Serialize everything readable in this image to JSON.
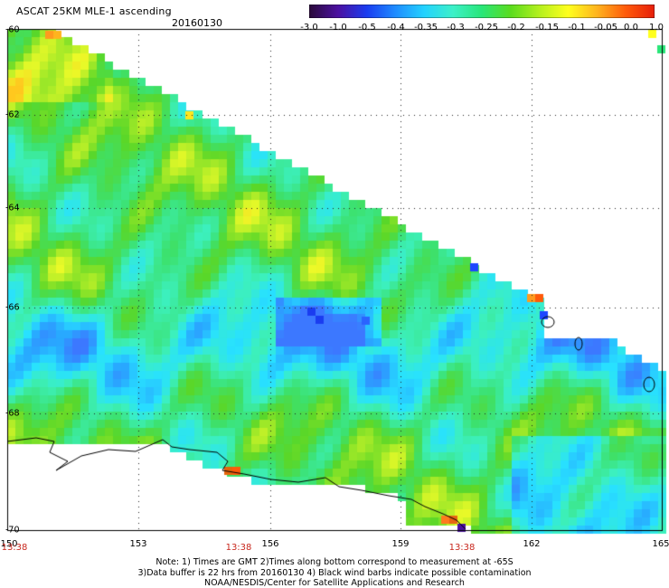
{
  "header": {
    "title": "ASCAT 25KM MLE-1 ascending",
    "date": "20160130"
  },
  "colorbar": {
    "labels": [
      "-3.0",
      "-1.0",
      "-0.5",
      "-0.4",
      "-0.35",
      "-0.3",
      "-0.25",
      "-0.2",
      "-0.15",
      "-0.1",
      "-0.05",
      "0.0",
      "1.0"
    ],
    "colors": [
      "#2a0a3a",
      "#4b10a0",
      "#1a3cf0",
      "#1e8cff",
      "#23d2ff",
      "#3cf0c8",
      "#28e678",
      "#5adc1e",
      "#b4f01e",
      "#ffff1e",
      "#ffb41e",
      "#ff5a0a",
      "#e61e0a"
    ]
  },
  "axes": {
    "lat_labels": [
      "-60",
      "-62",
      "-64",
      "-66",
      "-68",
      "-70"
    ],
    "lon_labels": [
      "150",
      "153",
      "156",
      "159",
      "162",
      "165"
    ],
    "time_labels": [
      "13:38",
      "13:38",
      "13:38"
    ]
  },
  "notes": {
    "line1": "Note: 1) Times are GMT 2)Times along bottom correspond to measurement at -65S",
    "line2": "3)Data buffer is 22 hrs from 20160130 4) Black wind barbs indicate possible contamination",
    "line3": "NOAA/NESDIS/Center for Satellite Applications and Research"
  }
}
